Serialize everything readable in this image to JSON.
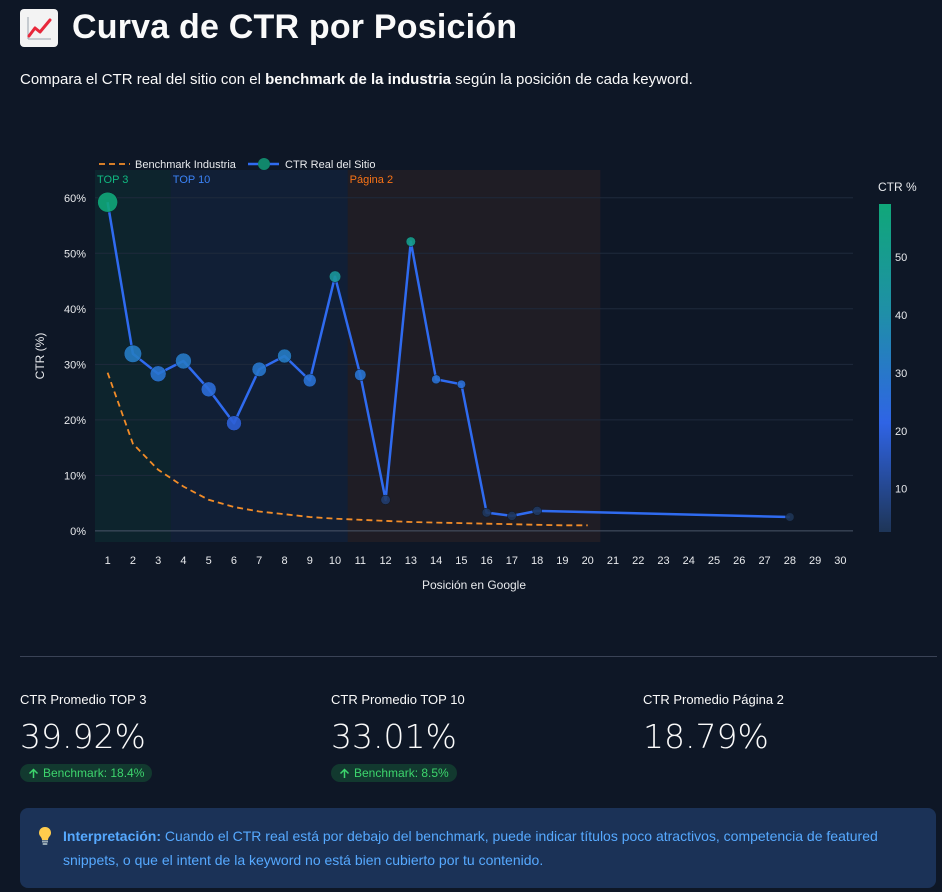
{
  "header": {
    "title_emoji": "chart-increasing-icon",
    "title": "Curva de CTR por Posición",
    "subtitle_prefix": "Compara el CTR real del sitio con el ",
    "subtitle_bold": "benchmark de la industria",
    "subtitle_suffix": " según la posición de cada keyword."
  },
  "chart_data": {
    "type": "line",
    "xlabel": "Posición en Google",
    "ylabel": "CTR (%)",
    "xlim": [
      0.5,
      30.5
    ],
    "ylim": [
      -2,
      65
    ],
    "x_ticks": [
      1,
      2,
      3,
      4,
      5,
      6,
      7,
      8,
      9,
      10,
      11,
      12,
      13,
      14,
      15,
      16,
      17,
      18,
      19,
      20,
      21,
      22,
      23,
      24,
      25,
      26,
      27,
      28,
      29,
      30
    ],
    "y_ticks": [
      0,
      10,
      20,
      30,
      40,
      50,
      60
    ],
    "y_tick_labels": [
      "0%",
      "10%",
      "20%",
      "30%",
      "40%",
      "50%",
      "60%"
    ],
    "grid": true,
    "legend_position": "top-left",
    "zones": [
      {
        "label": "TOP 3",
        "x_start": 0.5,
        "x_end": 3.5,
        "color": "#10b981"
      },
      {
        "label": "TOP 10",
        "x_start": 3.5,
        "x_end": 10.5,
        "color": "#3b82f6"
      },
      {
        "label": "Página 2",
        "x_start": 10.5,
        "x_end": 20.5,
        "color": "#f97316"
      }
    ],
    "series": [
      {
        "name": "Benchmark Industria",
        "style": "dashed",
        "color": "#f28c28",
        "x": [
          1,
          2,
          3,
          4,
          5,
          6,
          7,
          8,
          9,
          10,
          11,
          12,
          13,
          14,
          15,
          16,
          17,
          18,
          19,
          20
        ],
        "y": [
          28.5,
          15.7,
          11.0,
          8.0,
          5.6,
          4.3,
          3.5,
          3.0,
          2.5,
          2.2,
          2.0,
          1.8,
          1.6,
          1.5,
          1.4,
          1.3,
          1.2,
          1.1,
          1.0,
          1.0
        ]
      },
      {
        "name": "CTR Real del Sitio",
        "style": "solid",
        "color": "#2f6bf0",
        "x": [
          1,
          2,
          3,
          4,
          5,
          6,
          7,
          8,
          9,
          10,
          11,
          12,
          13,
          14,
          15,
          16,
          17,
          18,
          28
        ],
        "y": [
          59.2,
          31.9,
          28.3,
          30.6,
          25.5,
          19.4,
          29.1,
          31.5,
          27.1,
          45.8,
          28.1,
          5.6,
          52.1,
          27.3,
          26.4,
          3.3,
          2.7,
          3.6,
          2.5
        ],
        "marker_size": [
          3,
          2.5,
          2.2,
          2.2,
          2.0,
          2.0,
          1.9,
          1.8,
          1.6,
          1.3,
          1.3,
          0.9,
          0.9,
          0.8,
          0.7,
          0.8,
          0.8,
          0.8,
          0.7
        ]
      }
    ],
    "colorbar": {
      "title": "CTR %",
      "ticks": [
        10,
        20,
        30,
        40,
        50
      ],
      "range": [
        2.5,
        59.2
      ],
      "colors": [
        "#1e3557",
        "#2f64e5",
        "#1f8fa8",
        "#10a779"
      ]
    }
  },
  "metrics": [
    {
      "label": "CTR Promedio TOP 3",
      "value": "39.92%",
      "delta": "Benchmark: 18.4%"
    },
    {
      "label": "CTR Promedio TOP 10",
      "value": "33.01%",
      "delta": "Benchmark: 8.5%"
    },
    {
      "label": "CTR Promedio Página 2",
      "value": "18.79%",
      "delta": ""
    }
  ],
  "info": {
    "icon": "lightbulb-icon",
    "bold": "Interpretación:",
    "text": " Cuando el CTR real está por debajo del benchmark, puede indicar títulos poco atractivos, competencia de featured snippets, o que el intent de la keyword no está bien cubierto por tu contenido."
  }
}
